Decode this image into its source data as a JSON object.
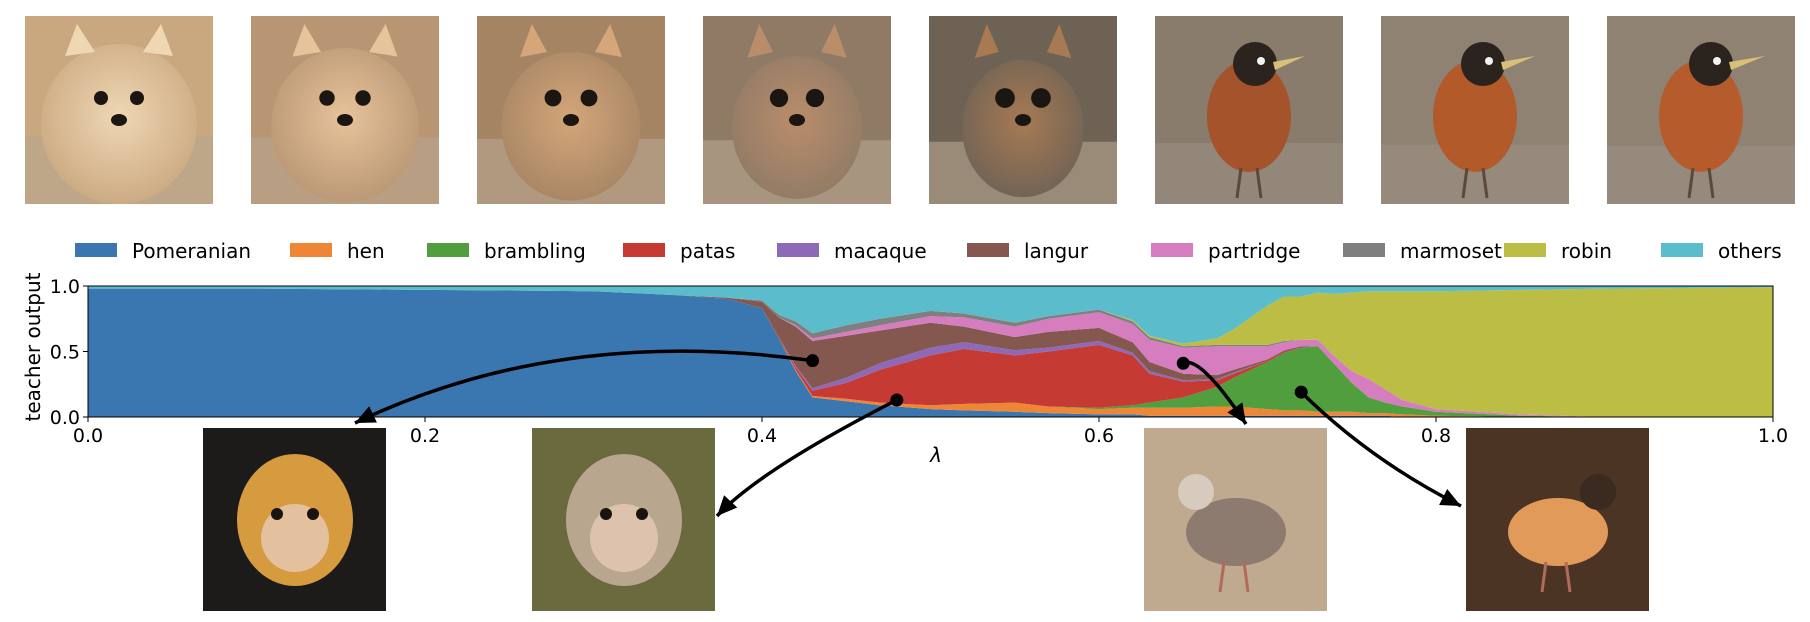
{
  "figure": {
    "top_strip": {
      "images": [
        {
          "name": "pomeranian",
          "bg": "#c9a77f",
          "fg": "#efd7b4"
        },
        {
          "name": "pomeranian",
          "bg": "#b89573",
          "fg": "#e6c39a"
        },
        {
          "name": "pomeranian",
          "bg": "#a58464",
          "fg": "#d4a679"
        },
        {
          "name": "pomeranian-langur",
          "bg": "#8f7a66",
          "fg": "#b98d6a"
        },
        {
          "name": "langur",
          "bg": "#6e6255",
          "fg": "#a77a54"
        },
        {
          "name": "robin-like",
          "bg": "#8a7c6c",
          "fg": "#a5532a"
        },
        {
          "name": "robin",
          "bg": "#8f8272",
          "fg": "#b25a2a"
        },
        {
          "name": "robin",
          "bg": "#8f8272",
          "fg": "#b65c2c"
        }
      ]
    },
    "insets": [
      {
        "name": "langur",
        "bg": "#1d1b19",
        "fg": "#d69a3f"
      },
      {
        "name": "patas",
        "bg": "#6b6a3f",
        "fg": "#b8a68e"
      },
      {
        "name": "partridge",
        "bg": "#bfa98f",
        "fg": "#8c7b6e"
      },
      {
        "name": "brambling",
        "bg": "#4b3424",
        "fg": "#e29a5a"
      }
    ]
  },
  "chart_data": {
    "type": "area",
    "stacked": true,
    "xlabel": "λ",
    "ylabel": "teacher output",
    "xlim": [
      0.0,
      1.0
    ],
    "ylim": [
      0.0,
      1.0
    ],
    "xticks": [
      "0.0",
      "0.2",
      "0.4",
      "0.6",
      "0.8",
      "1.0"
    ],
    "yticks": [
      "0.0",
      "0.5",
      "1.0"
    ],
    "legend_position": "top",
    "x": [
      0.0,
      0.1,
      0.2,
      0.3,
      0.35,
      0.38,
      0.4,
      0.41,
      0.42,
      0.43,
      0.45,
      0.47,
      0.5,
      0.52,
      0.55,
      0.57,
      0.6,
      0.62,
      0.63,
      0.65,
      0.67,
      0.68,
      0.7,
      0.71,
      0.72,
      0.73,
      0.74,
      0.75,
      0.76,
      0.77,
      0.78,
      0.8,
      0.85,
      0.9,
      1.0
    ],
    "series": [
      {
        "name": "Pomeranian",
        "color": "#3a76af",
        "values": [
          0.98,
          0.98,
          0.97,
          0.96,
          0.93,
          0.9,
          0.83,
          0.6,
          0.35,
          0.15,
          0.12,
          0.09,
          0.06,
          0.05,
          0.04,
          0.03,
          0.02,
          0.02,
          0.01,
          0.01,
          0.01,
          0.01,
          0.01,
          0.01,
          0.01,
          0.01,
          0.01,
          0.01,
          0.01,
          0.01,
          0.0,
          0.0,
          0.0,
          0.0,
          0.0
        ]
      },
      {
        "name": "hen",
        "color": "#ef8636",
        "values": [
          0.0,
          0.0,
          0.0,
          0.0,
          0.0,
          0.0,
          0.0,
          0.0,
          0.01,
          0.01,
          0.02,
          0.02,
          0.03,
          0.05,
          0.07,
          0.05,
          0.04,
          0.05,
          0.06,
          0.06,
          0.07,
          0.07,
          0.05,
          0.04,
          0.04,
          0.03,
          0.03,
          0.03,
          0.02,
          0.02,
          0.02,
          0.01,
          0.0,
          0.0,
          0.0
        ]
      },
      {
        "name": "brambling",
        "color": "#519e3e",
        "values": [
          0.0,
          0.0,
          0.0,
          0.0,
          0.0,
          0.0,
          0.0,
          0.0,
          0.0,
          0.0,
          0.0,
          0.0,
          0.0,
          0.0,
          0.0,
          0.0,
          0.01,
          0.02,
          0.04,
          0.08,
          0.15,
          0.22,
          0.36,
          0.44,
          0.48,
          0.5,
          0.36,
          0.22,
          0.12,
          0.08,
          0.06,
          0.03,
          0.01,
          0.0,
          0.0
        ]
      },
      {
        "name": "patas",
        "color": "#c53a32",
        "values": [
          0.0,
          0.0,
          0.0,
          0.0,
          0.0,
          0.0,
          0.0,
          0.01,
          0.02,
          0.04,
          0.12,
          0.25,
          0.38,
          0.42,
          0.36,
          0.42,
          0.48,
          0.38,
          0.22,
          0.12,
          0.05,
          0.03,
          0.01,
          0.01,
          0.0,
          0.0,
          0.0,
          0.0,
          0.0,
          0.0,
          0.0,
          0.0,
          0.0,
          0.0,
          0.0
        ]
      },
      {
        "name": "macaque",
        "color": "#8d69b8",
        "values": [
          0.0,
          0.0,
          0.0,
          0.0,
          0.0,
          0.0,
          0.0,
          0.0,
          0.01,
          0.02,
          0.04,
          0.05,
          0.06,
          0.05,
          0.04,
          0.03,
          0.03,
          0.02,
          0.02,
          0.01,
          0.01,
          0.01,
          0.0,
          0.0,
          0.0,
          0.0,
          0.0,
          0.0,
          0.0,
          0.0,
          0.0,
          0.0,
          0.0,
          0.0,
          0.0
        ]
      },
      {
        "name": "langur",
        "color": "#84584e",
        "values": [
          0.0,
          0.0,
          0.0,
          0.0,
          0.0,
          0.01,
          0.05,
          0.15,
          0.3,
          0.36,
          0.32,
          0.25,
          0.19,
          0.12,
          0.1,
          0.12,
          0.1,
          0.08,
          0.07,
          0.05,
          0.03,
          0.02,
          0.01,
          0.01,
          0.01,
          0.0,
          0.0,
          0.0,
          0.0,
          0.0,
          0.0,
          0.0,
          0.0,
          0.0,
          0.0
        ]
      },
      {
        "name": "partridge",
        "color": "#d57dbe",
        "values": [
          0.0,
          0.0,
          0.0,
          0.0,
          0.0,
          0.0,
          0.0,
          0.0,
          0.01,
          0.02,
          0.03,
          0.04,
          0.05,
          0.07,
          0.08,
          0.1,
          0.12,
          0.14,
          0.17,
          0.2,
          0.22,
          0.18,
          0.1,
          0.06,
          0.05,
          0.05,
          0.06,
          0.09,
          0.14,
          0.1,
          0.05,
          0.02,
          0.01,
          0.0,
          0.0
        ]
      },
      {
        "name": "marmoset",
        "color": "#7f7f7f",
        "values": [
          0.0,
          0.0,
          0.0,
          0.0,
          0.0,
          0.0,
          0.01,
          0.02,
          0.03,
          0.04,
          0.05,
          0.05,
          0.04,
          0.03,
          0.03,
          0.02,
          0.02,
          0.02,
          0.02,
          0.01,
          0.01,
          0.01,
          0.01,
          0.01,
          0.0,
          0.0,
          0.0,
          0.0,
          0.0,
          0.0,
          0.0,
          0.0,
          0.0,
          0.0,
          0.0
        ]
      },
      {
        "name": "robin",
        "color": "#bcbd45",
        "values": [
          0.0,
          0.0,
          0.0,
          0.0,
          0.0,
          0.0,
          0.0,
          0.0,
          0.0,
          0.0,
          0.0,
          0.0,
          0.0,
          0.0,
          0.0,
          0.0,
          0.0,
          0.01,
          0.01,
          0.02,
          0.05,
          0.12,
          0.3,
          0.34,
          0.33,
          0.36,
          0.48,
          0.6,
          0.67,
          0.75,
          0.83,
          0.9,
          0.95,
          0.98,
          0.99
        ]
      },
      {
        "name": "others",
        "color": "#5bbccc",
        "values": [
          0.02,
          0.02,
          0.03,
          0.04,
          0.07,
          0.09,
          0.11,
          0.22,
          0.27,
          0.36,
          0.3,
          0.25,
          0.19,
          0.21,
          0.28,
          0.23,
          0.18,
          0.26,
          0.38,
          0.44,
          0.45,
          0.33,
          0.16,
          0.08,
          0.08,
          0.05,
          0.06,
          0.05,
          0.04,
          0.04,
          0.04,
          0.04,
          0.03,
          0.02,
          0.01
        ]
      }
    ],
    "arrows": [
      {
        "series": "langur",
        "from": [
          0.43,
          0.43
        ],
        "to": "inset-1"
      },
      {
        "series": "patas",
        "from": [
          0.48,
          0.13
        ],
        "to": "inset-2"
      },
      {
        "series": "partridge",
        "from": [
          0.65,
          0.41
        ],
        "to": "inset-3"
      },
      {
        "series": "brambling",
        "from": [
          0.72,
          0.19
        ],
        "to": "inset-4"
      }
    ]
  }
}
